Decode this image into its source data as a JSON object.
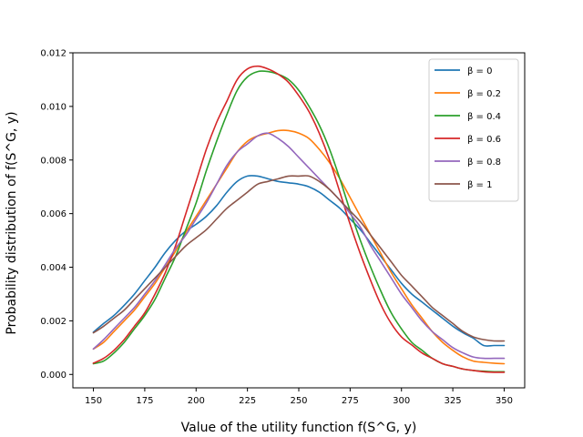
{
  "chart_data": {
    "type": "line",
    "title": "",
    "xlabel": "Value of the utility function f(S^G, y)",
    "ylabel": "Probability distribution of f(S^G, y)",
    "xlim": [
      140,
      360
    ],
    "ylim": [
      -0.0005,
      0.012
    ],
    "xticks": [
      150,
      175,
      200,
      225,
      250,
      275,
      300,
      325,
      350
    ],
    "yticks": [
      0.0,
      0.002,
      0.004,
      0.006,
      0.008,
      0.01,
      0.012
    ],
    "ytick_labels": [
      "0.000",
      "0.002",
      "0.004",
      "0.006",
      "0.008",
      "0.010",
      "0.012"
    ],
    "grid": false,
    "legend_position": "top-right",
    "x": [
      150,
      155,
      160,
      165,
      170,
      175,
      180,
      185,
      190,
      195,
      200,
      205,
      210,
      215,
      220,
      225,
      230,
      235,
      240,
      245,
      250,
      255,
      260,
      265,
      270,
      275,
      280,
      285,
      290,
      295,
      300,
      305,
      310,
      315,
      320,
      325,
      330,
      335,
      340,
      345,
      350
    ],
    "series": [
      {
        "name": "β = 0",
        "color": "#1f77b4",
        "values": [
          0.00158,
          0.0019,
          0.0022,
          0.00258,
          0.003,
          0.0035,
          0.004,
          0.00455,
          0.005,
          0.00535,
          0.0056,
          0.0059,
          0.0063,
          0.0068,
          0.0072,
          0.0074,
          0.0074,
          0.0073,
          0.0072,
          0.00715,
          0.0071,
          0.007,
          0.0068,
          0.0065,
          0.0062,
          0.0058,
          0.0054,
          0.0049,
          0.0044,
          0.0039,
          0.0034,
          0.003,
          0.0027,
          0.0024,
          0.0021,
          0.0018,
          0.00155,
          0.00135,
          0.00108,
          0.00108,
          0.00108
        ]
      },
      {
        "name": "β = 0.2",
        "color": "#ff7f0e",
        "values": [
          0.00095,
          0.0012,
          0.0016,
          0.002,
          0.0024,
          0.0029,
          0.0034,
          0.004,
          0.0046,
          0.0053,
          0.0059,
          0.0065,
          0.0071,
          0.0077,
          0.0083,
          0.0087,
          0.0089,
          0.009,
          0.0091,
          0.0091,
          0.009,
          0.0088,
          0.0084,
          0.0079,
          0.0073,
          0.0066,
          0.0059,
          0.0052,
          0.0045,
          0.0038,
          0.0032,
          0.0026,
          0.0021,
          0.0016,
          0.0012,
          0.0009,
          0.00065,
          0.0005,
          0.00045,
          0.00042,
          0.0004
        ]
      },
      {
        "name": "β = 0.4",
        "color": "#2ca02c",
        "values": [
          0.0004,
          0.0005,
          0.0008,
          0.0012,
          0.0017,
          0.0022,
          0.0028,
          0.0036,
          0.0044,
          0.0054,
          0.0064,
          0.0076,
          0.0087,
          0.0097,
          0.0106,
          0.0111,
          0.0113,
          0.0113,
          0.0112,
          0.011,
          0.0106,
          0.01,
          0.0093,
          0.0084,
          0.0073,
          0.0061,
          0.005,
          0.004,
          0.0031,
          0.0023,
          0.0017,
          0.0012,
          0.0009,
          0.0006,
          0.0004,
          0.0003,
          0.0002,
          0.00015,
          0.00012,
          0.0001,
          0.0001
        ]
      },
      {
        "name": "β = 0.6",
        "color": "#d62728",
        "values": [
          0.00042,
          0.0006,
          0.0009,
          0.0013,
          0.0018,
          0.0023,
          0.003,
          0.0038,
          0.0048,
          0.006,
          0.0072,
          0.0084,
          0.0094,
          0.0102,
          0.011,
          0.0114,
          0.0115,
          0.0114,
          0.0112,
          0.0109,
          0.0104,
          0.0098,
          0.009,
          0.008,
          0.0068,
          0.0056,
          0.0045,
          0.0035,
          0.0026,
          0.0019,
          0.0014,
          0.0011,
          0.0008,
          0.0006,
          0.0004,
          0.0003,
          0.0002,
          0.00015,
          0.0001,
          8e-05,
          8e-05
        ]
      },
      {
        "name": "β = 0.8",
        "color": "#9467bd",
        "values": [
          0.00095,
          0.0013,
          0.0017,
          0.0021,
          0.0025,
          0.003,
          0.0035,
          0.0041,
          0.0047,
          0.0052,
          0.0058,
          0.0064,
          0.0071,
          0.0078,
          0.0083,
          0.0086,
          0.0089,
          0.009,
          0.0088,
          0.0085,
          0.0081,
          0.0077,
          0.0073,
          0.0069,
          0.0065,
          0.006,
          0.0055,
          0.0048,
          0.0042,
          0.0036,
          0.003,
          0.0025,
          0.002,
          0.0016,
          0.0013,
          0.001,
          0.0008,
          0.00065,
          0.0006,
          0.0006,
          0.0006
        ]
      },
      {
        "name": "β = 1",
        "color": "#8c564b",
        "values": [
          0.00155,
          0.0018,
          0.0021,
          0.0024,
          0.0028,
          0.0032,
          0.0036,
          0.004,
          0.0044,
          0.0048,
          0.0051,
          0.0054,
          0.0058,
          0.0062,
          0.0065,
          0.0068,
          0.0071,
          0.0072,
          0.0073,
          0.0074,
          0.0074,
          0.0074,
          0.0072,
          0.0069,
          0.0065,
          0.0061,
          0.0057,
          0.0052,
          0.0047,
          0.0042,
          0.0037,
          0.0033,
          0.0029,
          0.0025,
          0.0022,
          0.0019,
          0.0016,
          0.0014,
          0.0013,
          0.00125,
          0.00125
        ]
      }
    ]
  }
}
